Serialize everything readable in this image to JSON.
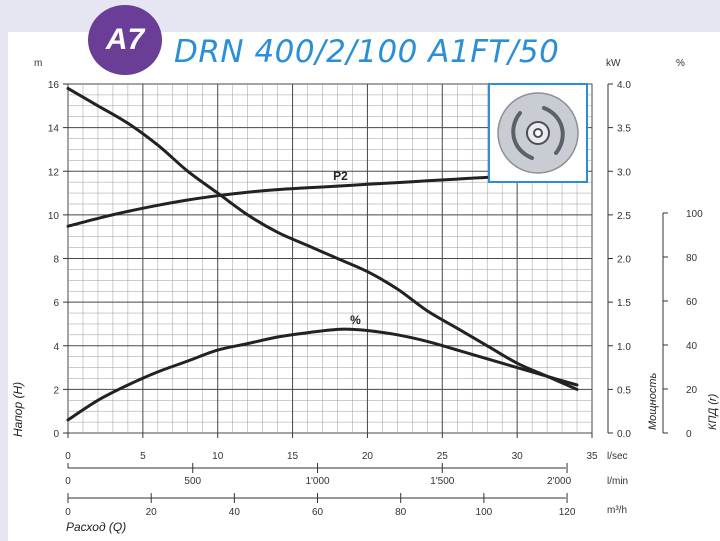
{
  "badge": "A7",
  "title": "DRN 400/2/100 A1FT/50",
  "colors": {
    "background_band": "#e6e6f2",
    "badge": "#6a3d97",
    "title": "#2a8fd6",
    "curve": "#222222",
    "grid": "#4a4a4a",
    "impeller_frame": "#2a8fd6"
  },
  "icons": [
    "impeller-icon"
  ],
  "chart_data": {
    "type": "line",
    "title": "DRN 400/2/100 A1FT/50",
    "grid": true,
    "axes": {
      "head": {
        "unit": "m",
        "label": "Напор (H)",
        "range": [
          0,
          16
        ],
        "ticks": [
          "0",
          "2",
          "4",
          "6",
          "8",
          "10",
          "12",
          "14",
          "16"
        ]
      },
      "power": {
        "unit": "kW",
        "label": "Мощность",
        "range": [
          0,
          4
        ],
        "ticks": [
          "0.0",
          "0.5",
          "1.0",
          "1.5",
          "2.0",
          "2.5",
          "3.0",
          "3.5",
          "4.0"
        ]
      },
      "efficiency": {
        "unit": "%",
        "label": "КПД (r)",
        "range": [
          0,
          100
        ],
        "ticks": [
          "0",
          "20",
          "40",
          "60",
          "80",
          "100"
        ]
      },
      "flow_lsec": {
        "unit": "l/sec",
        "range": [
          0,
          35
        ],
        "ticks": [
          "0",
          "5",
          "10",
          "15",
          "20",
          "25",
          "30",
          "35"
        ]
      },
      "flow_lmin": {
        "unit": "l/min",
        "ticks": [
          {
            "v": 500,
            "t": "500"
          },
          {
            "v": 1000,
            "t": "1'000"
          },
          {
            "v": 1500,
            "t": "1'500"
          },
          {
            "v": 2000,
            "t": "2'000"
          }
        ],
        "first_label": "0"
      },
      "flow_m3h": {
        "unit": "m³/h",
        "ticks": [
          "0",
          "20",
          "40",
          "60",
          "80",
          "100",
          "120"
        ]
      },
      "x_label": "Расход (Q)"
    },
    "series": [
      {
        "name": "H",
        "axis": "head",
        "x": [
          0,
          2,
          4,
          6,
          8,
          10,
          12,
          14,
          16,
          18,
          20,
          22,
          24,
          26,
          28,
          30,
          32,
          34
        ],
        "y": [
          15.8,
          15.0,
          14.2,
          13.2,
          12.0,
          11.0,
          10.0,
          9.2,
          8.6,
          8.0,
          7.4,
          6.6,
          5.6,
          4.8,
          4.0,
          3.2,
          2.6,
          2.0
        ]
      },
      {
        "name": "P2",
        "axis": "power",
        "x": [
          0,
          2,
          4,
          6,
          8,
          10,
          12,
          14,
          16,
          18,
          20,
          22,
          24,
          26,
          28,
          30
        ],
        "y": [
          2.37,
          2.46,
          2.54,
          2.61,
          2.67,
          2.72,
          2.76,
          2.79,
          2.81,
          2.83,
          2.85,
          2.87,
          2.89,
          2.91,
          2.93,
          2.94
        ]
      },
      {
        "name": "%",
        "axis": "head",
        "x": [
          0,
          2,
          4,
          6,
          8,
          10,
          12,
          14,
          16,
          18,
          19,
          20,
          22,
          24,
          26,
          28,
          30,
          32,
          34
        ],
        "y": [
          0.6,
          1.5,
          2.2,
          2.8,
          3.3,
          3.8,
          4.1,
          4.4,
          4.6,
          4.75,
          4.75,
          4.7,
          4.5,
          4.2,
          3.8,
          3.4,
          3.0,
          2.6,
          2.2
        ]
      }
    ],
    "labels": [
      {
        "text": "P2",
        "x": 18.2,
        "head": 11.6
      },
      {
        "text": "%",
        "x": 19.2,
        "head": 5.0
      }
    ]
  }
}
